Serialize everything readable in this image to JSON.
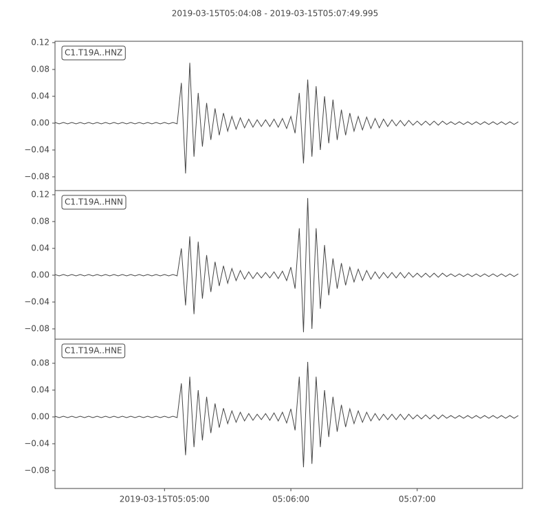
{
  "chart_data": [
    {
      "type": "line",
      "title": "2019-03-15T05:04:08  -  2019-03-15T05:07:49.995",
      "label": "C1.T19A..HNZ",
      "color": "#444444",
      "xlim": [
        0,
        221.995
      ],
      "x": [
        0,
        2,
        4,
        6,
        8,
        10,
        12,
        14,
        16,
        18,
        20,
        22,
        24,
        26,
        28,
        30,
        32,
        34,
        36,
        38,
        40,
        42,
        44,
        46,
        48,
        50,
        52,
        54,
        56,
        58,
        60,
        62,
        64,
        66,
        68,
        70,
        72,
        74,
        76,
        78,
        80,
        82,
        84,
        86,
        88,
        90,
        92,
        94,
        96,
        98,
        100,
        102,
        104,
        106,
        108,
        110,
        112,
        114,
        116,
        118,
        120,
        122,
        124,
        126,
        128,
        130,
        132,
        134,
        136,
        138,
        140,
        142,
        144,
        146,
        148,
        150,
        152,
        154,
        156,
        158,
        160,
        162,
        164,
        166,
        168,
        170,
        172,
        174,
        176,
        178,
        180,
        182,
        184,
        186,
        188,
        190,
        192,
        194,
        196,
        198,
        200,
        202,
        204,
        206,
        208,
        210,
        212,
        214,
        216,
        218,
        220
      ],
      "values": [
        0.001,
        -0.001,
        0.001,
        -0.001,
        0.001,
        -0.001,
        0.001,
        -0.001,
        0.001,
        -0.001,
        0.001,
        -0.001,
        0.001,
        -0.001,
        0.001,
        -0.001,
        0.001,
        -0.001,
        0.001,
        -0.001,
        0.001,
        -0.001,
        0.001,
        -0.001,
        0.001,
        -0.001,
        0.001,
        -0.001,
        0.001,
        -0.001,
        0.06,
        -0.075,
        0.09,
        -0.05,
        0.045,
        -0.035,
        0.03,
        -0.025,
        0.022,
        -0.018,
        0.015,
        -0.012,
        0.01,
        -0.009,
        0.008,
        -0.007,
        0.006,
        -0.006,
        0.005,
        -0.005,
        0.005,
        -0.005,
        0.006,
        -0.006,
        0.007,
        -0.008,
        0.01,
        -0.015,
        0.045,
        -0.06,
        0.065,
        -0.05,
        0.055,
        -0.04,
        0.04,
        -0.03,
        0.035,
        -0.025,
        0.02,
        -0.018,
        0.015,
        -0.012,
        0.01,
        -0.01,
        0.009,
        -0.008,
        0.007,
        -0.007,
        0.006,
        -0.005,
        0.005,
        -0.004,
        0.004,
        -0.004,
        0.004,
        -0.003,
        0.003,
        -0.003,
        0.003,
        -0.003,
        0.003,
        -0.003,
        0.003,
        -0.002,
        0.002,
        -0.002,
        0.002,
        -0.002,
        0.002,
        -0.002,
        0.002,
        -0.002,
        0.002,
        -0.002,
        0.002,
        -0.002,
        0.002,
        -0.002,
        0.002,
        -0.002,
        0.002
      ],
      "ylim": [
        -0.1005,
        0.122
      ],
      "yticks": [
        {
          "value": -0.08,
          "label": "−0.08"
        },
        {
          "value": -0.04,
          "label": "−0.04"
        },
        {
          "value": 0,
          "label": "0.00"
        },
        {
          "value": 0.04,
          "label": "0.04"
        },
        {
          "value": 0.08,
          "label": "0.08"
        },
        {
          "value": 0.12,
          "label": "0.12"
        }
      ]
    },
    {
      "type": "line",
      "label": "C1.T19A..HNN",
      "color": "#444444",
      "xlim": [
        0,
        221.995
      ],
      "x": [
        0,
        2,
        4,
        6,
        8,
        10,
        12,
        14,
        16,
        18,
        20,
        22,
        24,
        26,
        28,
        30,
        32,
        34,
        36,
        38,
        40,
        42,
        44,
        46,
        48,
        50,
        52,
        54,
        56,
        58,
        60,
        62,
        64,
        66,
        68,
        70,
        72,
        74,
        76,
        78,
        80,
        82,
        84,
        86,
        88,
        90,
        92,
        94,
        96,
        98,
        100,
        102,
        104,
        106,
        108,
        110,
        112,
        114,
        116,
        118,
        120,
        122,
        124,
        126,
        128,
        130,
        132,
        134,
        136,
        138,
        140,
        142,
        144,
        146,
        148,
        150,
        152,
        154,
        156,
        158,
        160,
        162,
        164,
        166,
        168,
        170,
        172,
        174,
        176,
        178,
        180,
        182,
        184,
        186,
        188,
        190,
        192,
        194,
        196,
        198,
        200,
        202,
        204,
        206,
        208,
        210,
        212,
        214,
        216,
        218,
        220
      ],
      "values": [
        0.001,
        -0.001,
        0.001,
        -0.001,
        0.001,
        -0.001,
        0.001,
        -0.001,
        0.001,
        -0.001,
        0.001,
        -0.001,
        0.001,
        -0.001,
        0.001,
        -0.001,
        0.001,
        -0.001,
        0.001,
        -0.001,
        0.001,
        -0.001,
        0.001,
        -0.001,
        0.001,
        -0.001,
        0.001,
        -0.001,
        0.001,
        -0.001,
        0.04,
        -0.045,
        0.058,
        -0.058,
        0.05,
        -0.035,
        0.03,
        -0.025,
        0.02,
        -0.016,
        0.014,
        -0.012,
        0.01,
        -0.008,
        0.007,
        -0.006,
        0.005,
        -0.005,
        0.004,
        -0.004,
        0.004,
        -0.004,
        0.005,
        -0.005,
        0.006,
        -0.008,
        0.012,
        -0.02,
        0.07,
        -0.085,
        0.115,
        -0.08,
        0.07,
        -0.05,
        0.045,
        -0.03,
        0.025,
        -0.02,
        0.018,
        -0.015,
        0.012,
        -0.01,
        0.009,
        -0.008,
        0.007,
        -0.006,
        0.005,
        -0.005,
        0.004,
        -0.004,
        0.004,
        -0.004,
        0.004,
        -0.004,
        0.004,
        -0.003,
        0.003,
        -0.003,
        0.003,
        -0.003,
        0.003,
        -0.003,
        0.003,
        -0.002,
        0.002,
        -0.002,
        0.002,
        -0.002,
        0.002,
        -0.002,
        0.002,
        -0.002,
        0.002,
        -0.002,
        0.002,
        -0.002,
        0.002,
        -0.002,
        0.002,
        -0.002,
        0.002
      ],
      "ylim": [
        -0.0954,
        0.1262
      ],
      "yticks": [
        {
          "value": -0.08,
          "label": "−0.08"
        },
        {
          "value": -0.04,
          "label": "−0.04"
        },
        {
          "value": 0,
          "label": "0.00"
        },
        {
          "value": 0.04,
          "label": "0.04"
        },
        {
          "value": 0.08,
          "label": "0.08"
        },
        {
          "value": 0.12,
          "label": "0.12"
        }
      ]
    },
    {
      "type": "line",
      "label": "C1.T19A..HNE",
      "color": "#444444",
      "xlim": [
        0,
        221.995
      ],
      "xticks": [
        {
          "value": 52,
          "label": "2019-03-15T05:05:00"
        },
        {
          "value": 112,
          "label": "05:06:00"
        },
        {
          "value": 172,
          "label": "05:07:00"
        }
      ],
      "x": [
        0,
        2,
        4,
        6,
        8,
        10,
        12,
        14,
        16,
        18,
        20,
        22,
        24,
        26,
        28,
        30,
        32,
        34,
        36,
        38,
        40,
        42,
        44,
        46,
        48,
        50,
        52,
        54,
        56,
        58,
        60,
        62,
        64,
        66,
        68,
        70,
        72,
        74,
        76,
        78,
        80,
        82,
        84,
        86,
        88,
        90,
        92,
        94,
        96,
        98,
        100,
        102,
        104,
        106,
        108,
        110,
        112,
        114,
        116,
        118,
        120,
        122,
        124,
        126,
        128,
        130,
        132,
        134,
        136,
        138,
        140,
        142,
        144,
        146,
        148,
        150,
        152,
        154,
        156,
        158,
        160,
        162,
        164,
        166,
        168,
        170,
        172,
        174,
        176,
        178,
        180,
        182,
        184,
        186,
        188,
        190,
        192,
        194,
        196,
        198,
        200,
        202,
        204,
        206,
        208,
        210,
        212,
        214,
        216,
        218,
        220
      ],
      "values": [
        0.001,
        -0.001,
        0.001,
        -0.001,
        0.001,
        -0.001,
        0.001,
        -0.001,
        0.001,
        -0.001,
        0.001,
        -0.001,
        0.001,
        -0.001,
        0.001,
        -0.001,
        0.001,
        -0.001,
        0.001,
        -0.001,
        0.001,
        -0.001,
        0.001,
        -0.001,
        0.001,
        -0.001,
        0.001,
        -0.001,
        0.001,
        -0.001,
        0.05,
        -0.057,
        0.06,
        -0.045,
        0.04,
        -0.035,
        0.03,
        -0.024,
        0.02,
        -0.016,
        0.013,
        -0.01,
        0.009,
        -0.008,
        0.007,
        -0.006,
        0.005,
        -0.005,
        0.004,
        -0.004,
        0.005,
        -0.005,
        0.006,
        -0.006,
        0.007,
        -0.009,
        0.012,
        -0.02,
        0.06,
        -0.075,
        0.082,
        -0.07,
        0.06,
        -0.045,
        0.04,
        -0.03,
        0.03,
        -0.022,
        0.018,
        -0.015,
        0.012,
        -0.01,
        0.009,
        -0.008,
        0.007,
        -0.006,
        0.005,
        -0.005,
        0.004,
        -0.004,
        0.004,
        -0.004,
        0.004,
        -0.004,
        0.004,
        -0.003,
        0.003,
        -0.003,
        0.003,
        -0.003,
        0.003,
        -0.003,
        0.003,
        -0.002,
        0.002,
        -0.002,
        0.002,
        -0.002,
        0.002,
        -0.002,
        0.002,
        -0.002,
        0.002,
        -0.002,
        0.002,
        -0.002,
        0.002,
        -0.002,
        0.002,
        -0.002,
        0.002
      ],
      "ylim": [
        -0.1067,
        0.1159
      ],
      "yticks": [
        {
          "value": -0.08,
          "label": "−0.08"
        },
        {
          "value": -0.04,
          "label": "−0.04"
        },
        {
          "value": 0,
          "label": "0.00"
        },
        {
          "value": 0.04,
          "label": "0.04"
        },
        {
          "value": 0.08,
          "label": "0.08"
        }
      ]
    }
  ]
}
